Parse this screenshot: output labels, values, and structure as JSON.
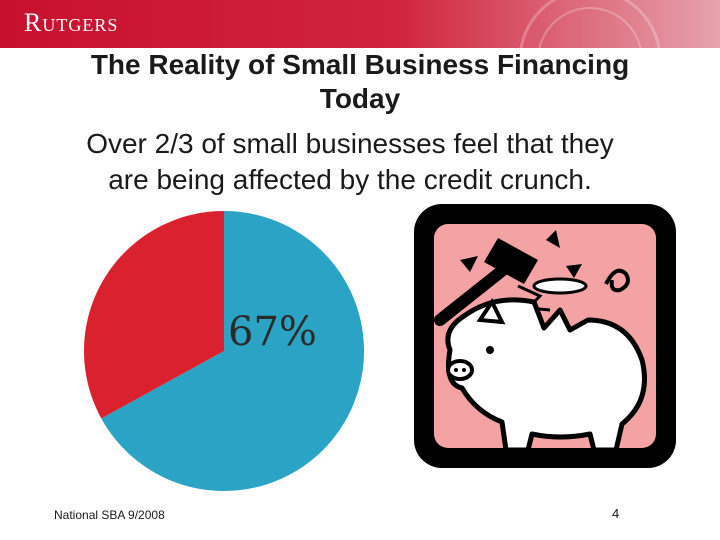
{
  "header": {
    "logo_text": "Rutgers",
    "brand_color": "#c8102e"
  },
  "slide": {
    "title_line1": "The Reality of Small Business Financing",
    "title_line2": "Today",
    "subtitle_line1": "Over 2/3 of small businesses feel that they",
    "subtitle_line2": "are being affected by the credit crunch.",
    "source": "National SBA 9/2008",
    "page_number": "4"
  },
  "clipart": {
    "icon": "broken-piggy-bank-hammer-icon",
    "background_color": "#f4a3a5",
    "frame_color": "#000000"
  },
  "chart_data": {
    "type": "pie",
    "slices": [
      {
        "value": 67,
        "color": "#2aa3c4",
        "label": "67%"
      },
      {
        "value": 33,
        "color": "#d9222e",
        "label": ""
      }
    ],
    "start": "top",
    "direction": "clockwise"
  }
}
